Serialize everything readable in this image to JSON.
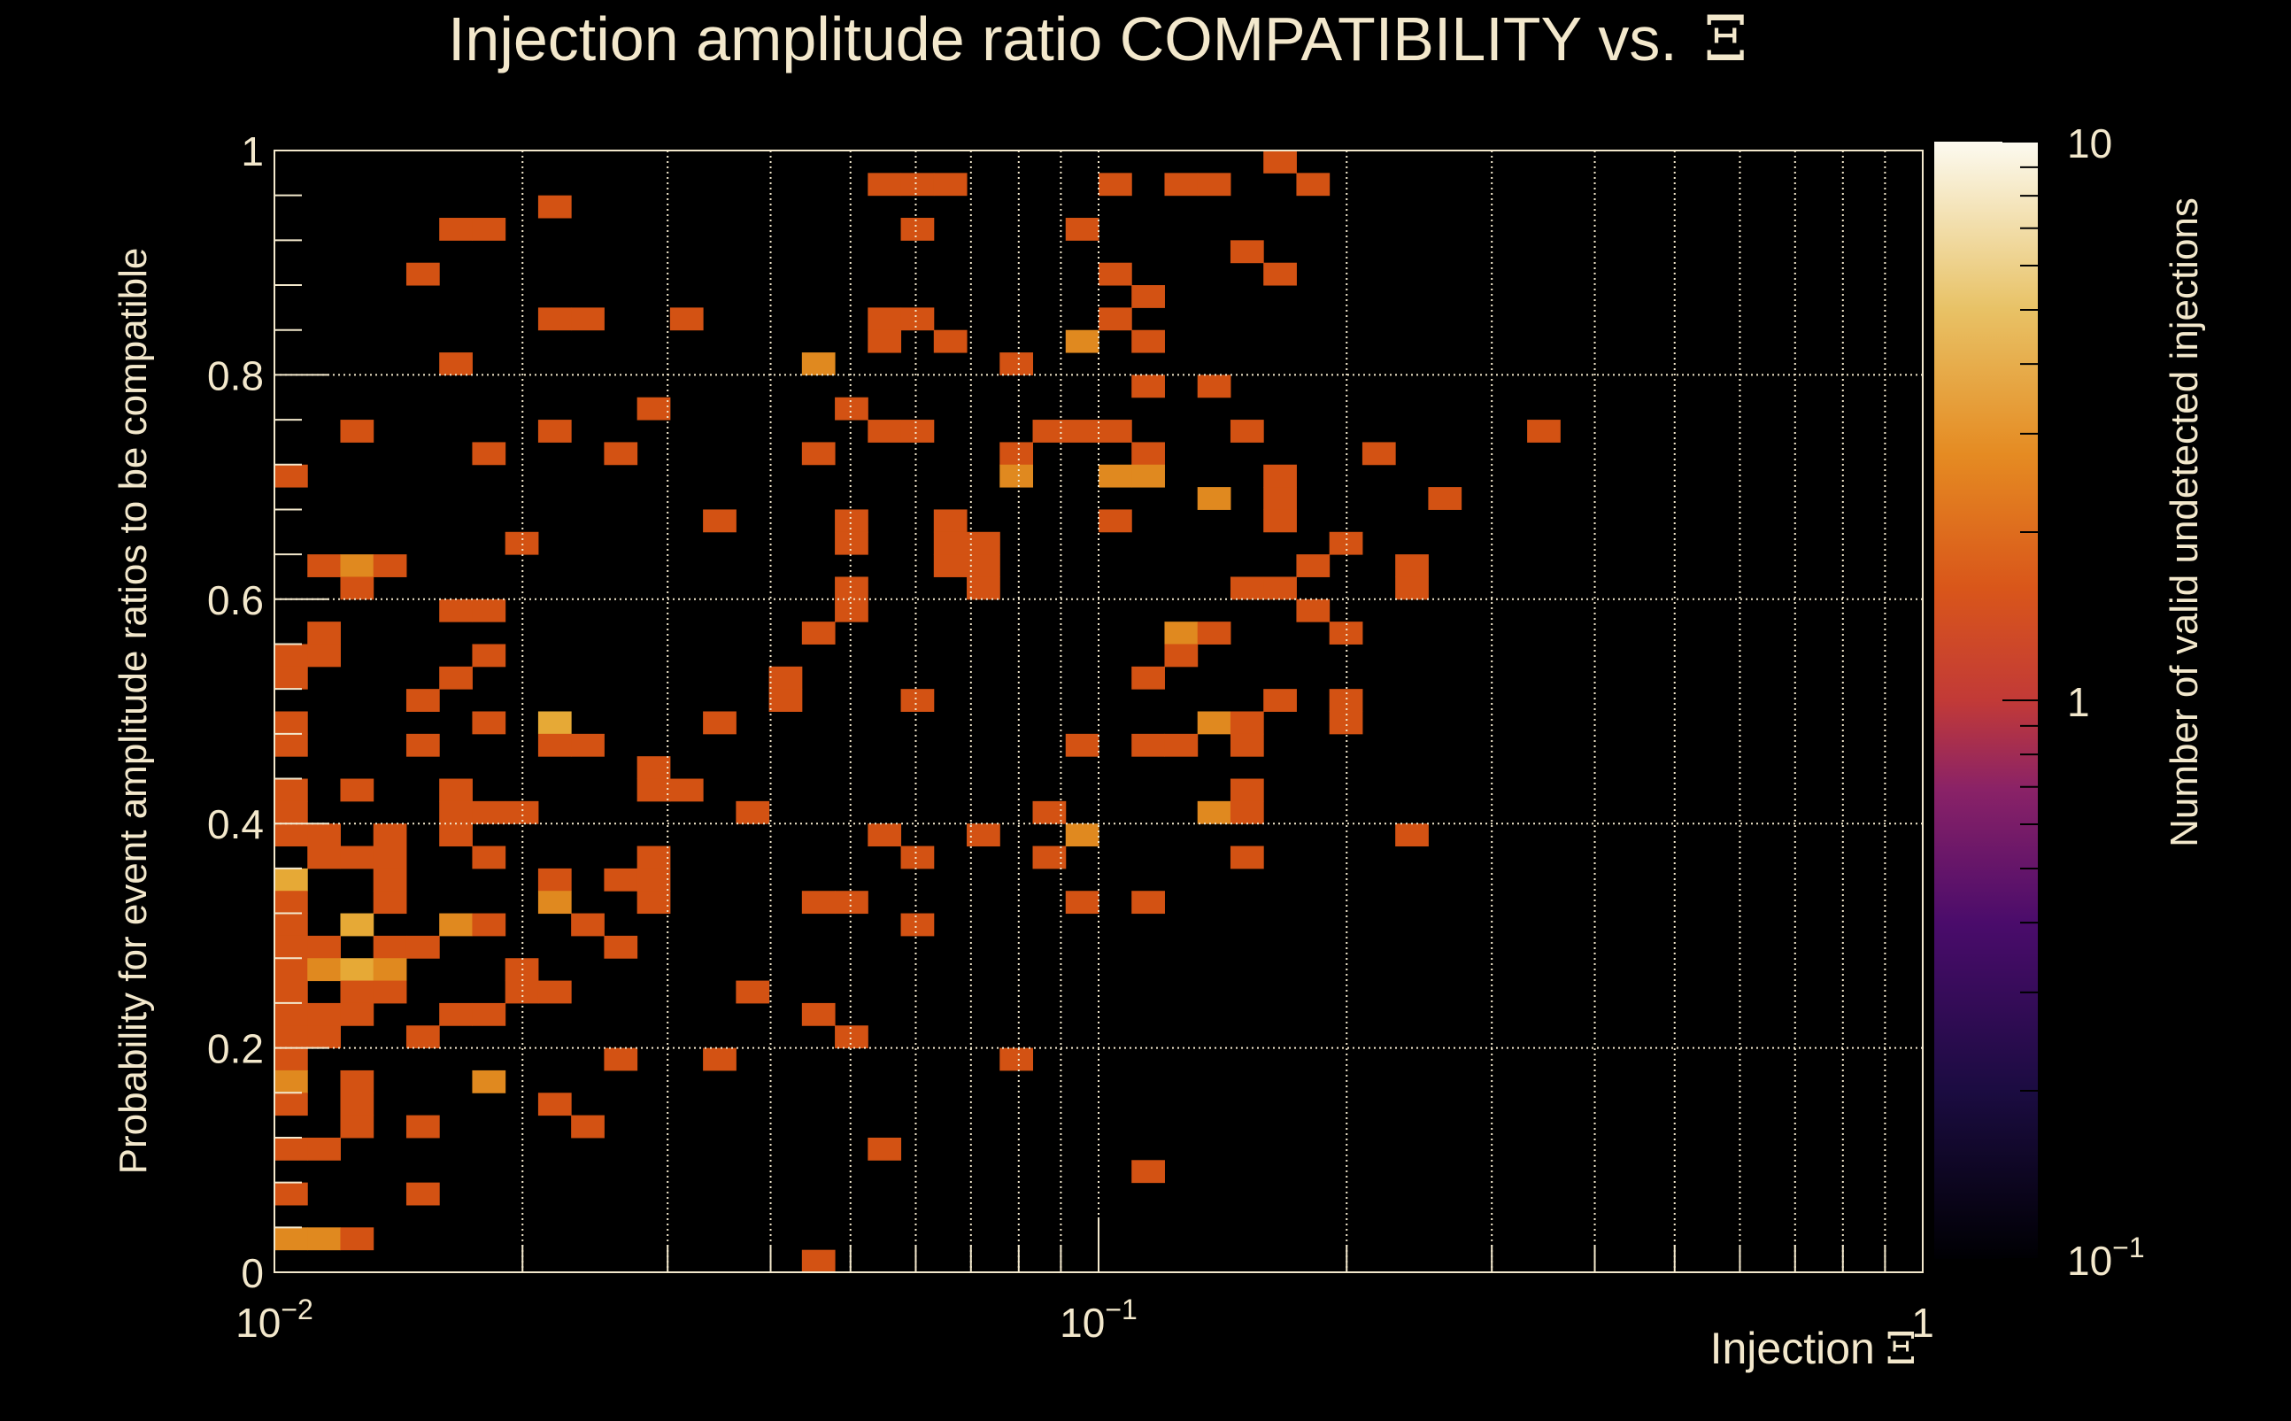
{
  "chart_data": {
    "type": "heatmap",
    "title": "Injection amplitude ratio COMPATIBILITY vs.",
    "title_symbol": "Ξ",
    "xlabel": "Injection",
    "xlabel_symbol": "Ξ",
    "ylabel": "Probability for event amplitude ratios to be compatible",
    "zlabel": "Number of valid undetected injections",
    "xscale": "log",
    "xlim": [
      0.01,
      1
    ],
    "ylim": [
      0,
      1
    ],
    "zscale": "log",
    "zlim": [
      0.1,
      10
    ],
    "x_bins": 50,
    "y_bins": 50,
    "grid": true,
    "x_tick_labels": [
      {
        "value": 0.01,
        "base": "10",
        "exp": "−2"
      },
      {
        "value": 0.1,
        "base": "10",
        "exp": "−1"
      },
      {
        "value": 1,
        "base": "1",
        "exp": ""
      }
    ],
    "y_tick_labels": [
      "0",
      "0.2",
      "0.4",
      "0.6",
      "0.8",
      "1"
    ],
    "z_tick_labels": [
      {
        "value": 10,
        "base": "10",
        "exp": ""
      },
      {
        "value": 1,
        "base": "1",
        "exp": ""
      },
      {
        "value": 0.1,
        "base": "10",
        "exp": "−1"
      }
    ],
    "cells_format": "[x_bin_index, y_bin_index, count]",
    "cells": [
      [
        30,
        49,
        1
      ],
      [
        18,
        48,
        1
      ],
      [
        19,
        48,
        1
      ],
      [
        20,
        48,
        1
      ],
      [
        25,
        48,
        1
      ],
      [
        27,
        48,
        1
      ],
      [
        28,
        48,
        1
      ],
      [
        31,
        48,
        1
      ],
      [
        8,
        47,
        1
      ],
      [
        5,
        46,
        1
      ],
      [
        6,
        46,
        1
      ],
      [
        19,
        46,
        1
      ],
      [
        24,
        46,
        1
      ],
      [
        29,
        45,
        1
      ],
      [
        4,
        44,
        1
      ],
      [
        25,
        44,
        1
      ],
      [
        30,
        44,
        1
      ],
      [
        26,
        43,
        1
      ],
      [
        8,
        42,
        1
      ],
      [
        9,
        42,
        1
      ],
      [
        12,
        42,
        1
      ],
      [
        18,
        42,
        1
      ],
      [
        19,
        42,
        1
      ],
      [
        25,
        42,
        1
      ],
      [
        18,
        41,
        1
      ],
      [
        20,
        41,
        1
      ],
      [
        24,
        41,
        2
      ],
      [
        26,
        41,
        1
      ],
      [
        5,
        40,
        1
      ],
      [
        16,
        40,
        2
      ],
      [
        22,
        40,
        1
      ],
      [
        26,
        39,
        1
      ],
      [
        28,
        39,
        1
      ],
      [
        11,
        38,
        1
      ],
      [
        17,
        38,
        1
      ],
      [
        2,
        37,
        1
      ],
      [
        8,
        37,
        1
      ],
      [
        18,
        37,
        1
      ],
      [
        19,
        37,
        1
      ],
      [
        23,
        37,
        1
      ],
      [
        24,
        37,
        1
      ],
      [
        25,
        37,
        1
      ],
      [
        29,
        37,
        1
      ],
      [
        38,
        37,
        1
      ],
      [
        6,
        36,
        1
      ],
      [
        10,
        36,
        1
      ],
      [
        16,
        36,
        1
      ],
      [
        22,
        36,
        1
      ],
      [
        26,
        36,
        1
      ],
      [
        33,
        36,
        1
      ],
      [
        0,
        35,
        1
      ],
      [
        22,
        35,
        2
      ],
      [
        25,
        35,
        2
      ],
      [
        26,
        35,
        2
      ],
      [
        30,
        35,
        1
      ],
      [
        28,
        34,
        2
      ],
      [
        30,
        34,
        1
      ],
      [
        35,
        34,
        1
      ],
      [
        13,
        33,
        1
      ],
      [
        17,
        33,
        1
      ],
      [
        20,
        33,
        1
      ],
      [
        25,
        33,
        1
      ],
      [
        30,
        33,
        1
      ],
      [
        7,
        32,
        1
      ],
      [
        17,
        32,
        1
      ],
      [
        20,
        32,
        1
      ],
      [
        21,
        32,
        1
      ],
      [
        32,
        32,
        1
      ],
      [
        1,
        31,
        1
      ],
      [
        2,
        31,
        2
      ],
      [
        3,
        31,
        1
      ],
      [
        20,
        31,
        1
      ],
      [
        21,
        31,
        1
      ],
      [
        31,
        31,
        1
      ],
      [
        34,
        31,
        1
      ],
      [
        2,
        30,
        1
      ],
      [
        17,
        30,
        1
      ],
      [
        21,
        30,
        1
      ],
      [
        29,
        30,
        1
      ],
      [
        30,
        30,
        1
      ],
      [
        34,
        30,
        1
      ],
      [
        5,
        29,
        1
      ],
      [
        6,
        29,
        1
      ],
      [
        17,
        29,
        1
      ],
      [
        31,
        29,
        1
      ],
      [
        1,
        28,
        1
      ],
      [
        16,
        28,
        1
      ],
      [
        27,
        28,
        2
      ],
      [
        28,
        28,
        1
      ],
      [
        32,
        28,
        1
      ],
      [
        0,
        27,
        1
      ],
      [
        1,
        27,
        1
      ],
      [
        6,
        27,
        1
      ],
      [
        27,
        27,
        1
      ],
      [
        0,
        26,
        1
      ],
      [
        5,
        26,
        1
      ],
      [
        15,
        26,
        1
      ],
      [
        26,
        26,
        1
      ],
      [
        4,
        25,
        1
      ],
      [
        15,
        25,
        1
      ],
      [
        19,
        25,
        1
      ],
      [
        30,
        25,
        1
      ],
      [
        32,
        25,
        1
      ],
      [
        0,
        24,
        1
      ],
      [
        6,
        24,
        1
      ],
      [
        8,
        24,
        3
      ],
      [
        13,
        24,
        1
      ],
      [
        28,
        24,
        2
      ],
      [
        29,
        24,
        1
      ],
      [
        32,
        24,
        1
      ],
      [
        0,
        23,
        1
      ],
      [
        4,
        23,
        1
      ],
      [
        8,
        23,
        1
      ],
      [
        9,
        23,
        1
      ],
      [
        24,
        23,
        1
      ],
      [
        26,
        23,
        1
      ],
      [
        27,
        23,
        1
      ],
      [
        29,
        23,
        1
      ],
      [
        11,
        22,
        1
      ],
      [
        0,
        21,
        1
      ],
      [
        2,
        21,
        1
      ],
      [
        5,
        21,
        1
      ],
      [
        11,
        21,
        1
      ],
      [
        12,
        21,
        1
      ],
      [
        29,
        21,
        1
      ],
      [
        0,
        20,
        1
      ],
      [
        5,
        20,
        1
      ],
      [
        6,
        20,
        1
      ],
      [
        7,
        20,
        1
      ],
      [
        14,
        20,
        1
      ],
      [
        23,
        20,
        1
      ],
      [
        28,
        20,
        2
      ],
      [
        29,
        20,
        1
      ],
      [
        0,
        19,
        1
      ],
      [
        1,
        19,
        1
      ],
      [
        3,
        19,
        1
      ],
      [
        5,
        19,
        1
      ],
      [
        18,
        19,
        1
      ],
      [
        21,
        19,
        1
      ],
      [
        24,
        19,
        2
      ],
      [
        34,
        19,
        1
      ],
      [
        1,
        18,
        1
      ],
      [
        2,
        18,
        1
      ],
      [
        3,
        18,
        1
      ],
      [
        6,
        18,
        1
      ],
      [
        11,
        18,
        1
      ],
      [
        19,
        18,
        1
      ],
      [
        23,
        18,
        1
      ],
      [
        29,
        18,
        1
      ],
      [
        0,
        17,
        3
      ],
      [
        3,
        17,
        1
      ],
      [
        8,
        17,
        1
      ],
      [
        10,
        17,
        1
      ],
      [
        11,
        17,
        1
      ],
      [
        0,
        16,
        1
      ],
      [
        3,
        16,
        1
      ],
      [
        8,
        16,
        2
      ],
      [
        11,
        16,
        1
      ],
      [
        16,
        16,
        1
      ],
      [
        17,
        16,
        1
      ],
      [
        24,
        16,
        1
      ],
      [
        26,
        16,
        1
      ],
      [
        0,
        15,
        1
      ],
      [
        2,
        15,
        3
      ],
      [
        5,
        15,
        2
      ],
      [
        6,
        15,
        1
      ],
      [
        9,
        15,
        1
      ],
      [
        19,
        15,
        1
      ],
      [
        0,
        14,
        1
      ],
      [
        1,
        14,
        1
      ],
      [
        3,
        14,
        1
      ],
      [
        4,
        14,
        1
      ],
      [
        10,
        14,
        1
      ],
      [
        0,
        13,
        1
      ],
      [
        1,
        13,
        2
      ],
      [
        2,
        13,
        3
      ],
      [
        3,
        13,
        2
      ],
      [
        7,
        13,
        1
      ],
      [
        0,
        12,
        1
      ],
      [
        2,
        12,
        1
      ],
      [
        3,
        12,
        1
      ],
      [
        7,
        12,
        1
      ],
      [
        8,
        12,
        1
      ],
      [
        14,
        12,
        1
      ],
      [
        0,
        11,
        1
      ],
      [
        1,
        11,
        1
      ],
      [
        2,
        11,
        1
      ],
      [
        5,
        11,
        1
      ],
      [
        6,
        11,
        1
      ],
      [
        16,
        11,
        1
      ],
      [
        0,
        10,
        1
      ],
      [
        1,
        10,
        1
      ],
      [
        4,
        10,
        1
      ],
      [
        17,
        10,
        1
      ],
      [
        0,
        9,
        1
      ],
      [
        10,
        9,
        1
      ],
      [
        13,
        9,
        1
      ],
      [
        22,
        9,
        1
      ],
      [
        0,
        8,
        2
      ],
      [
        2,
        8,
        1
      ],
      [
        6,
        8,
        2
      ],
      [
        0,
        7,
        1
      ],
      [
        2,
        7,
        1
      ],
      [
        8,
        7,
        1
      ],
      [
        2,
        6,
        1
      ],
      [
        4,
        6,
        1
      ],
      [
        9,
        6,
        1
      ],
      [
        0,
        5,
        1
      ],
      [
        1,
        5,
        1
      ],
      [
        18,
        5,
        1
      ],
      [
        26,
        4,
        1
      ],
      [
        0,
        3,
        1
      ],
      [
        4,
        3,
        1
      ],
      [
        0,
        1,
        2
      ],
      [
        1,
        1,
        2
      ],
      [
        2,
        1,
        1
      ],
      [
        16,
        0,
        1
      ]
    ]
  },
  "colors": {
    "background": "#000000",
    "text": "#f3e8cc",
    "count_1": "#d35213",
    "count_2": "#e0891f",
    "count_3": "#e6a936"
  }
}
